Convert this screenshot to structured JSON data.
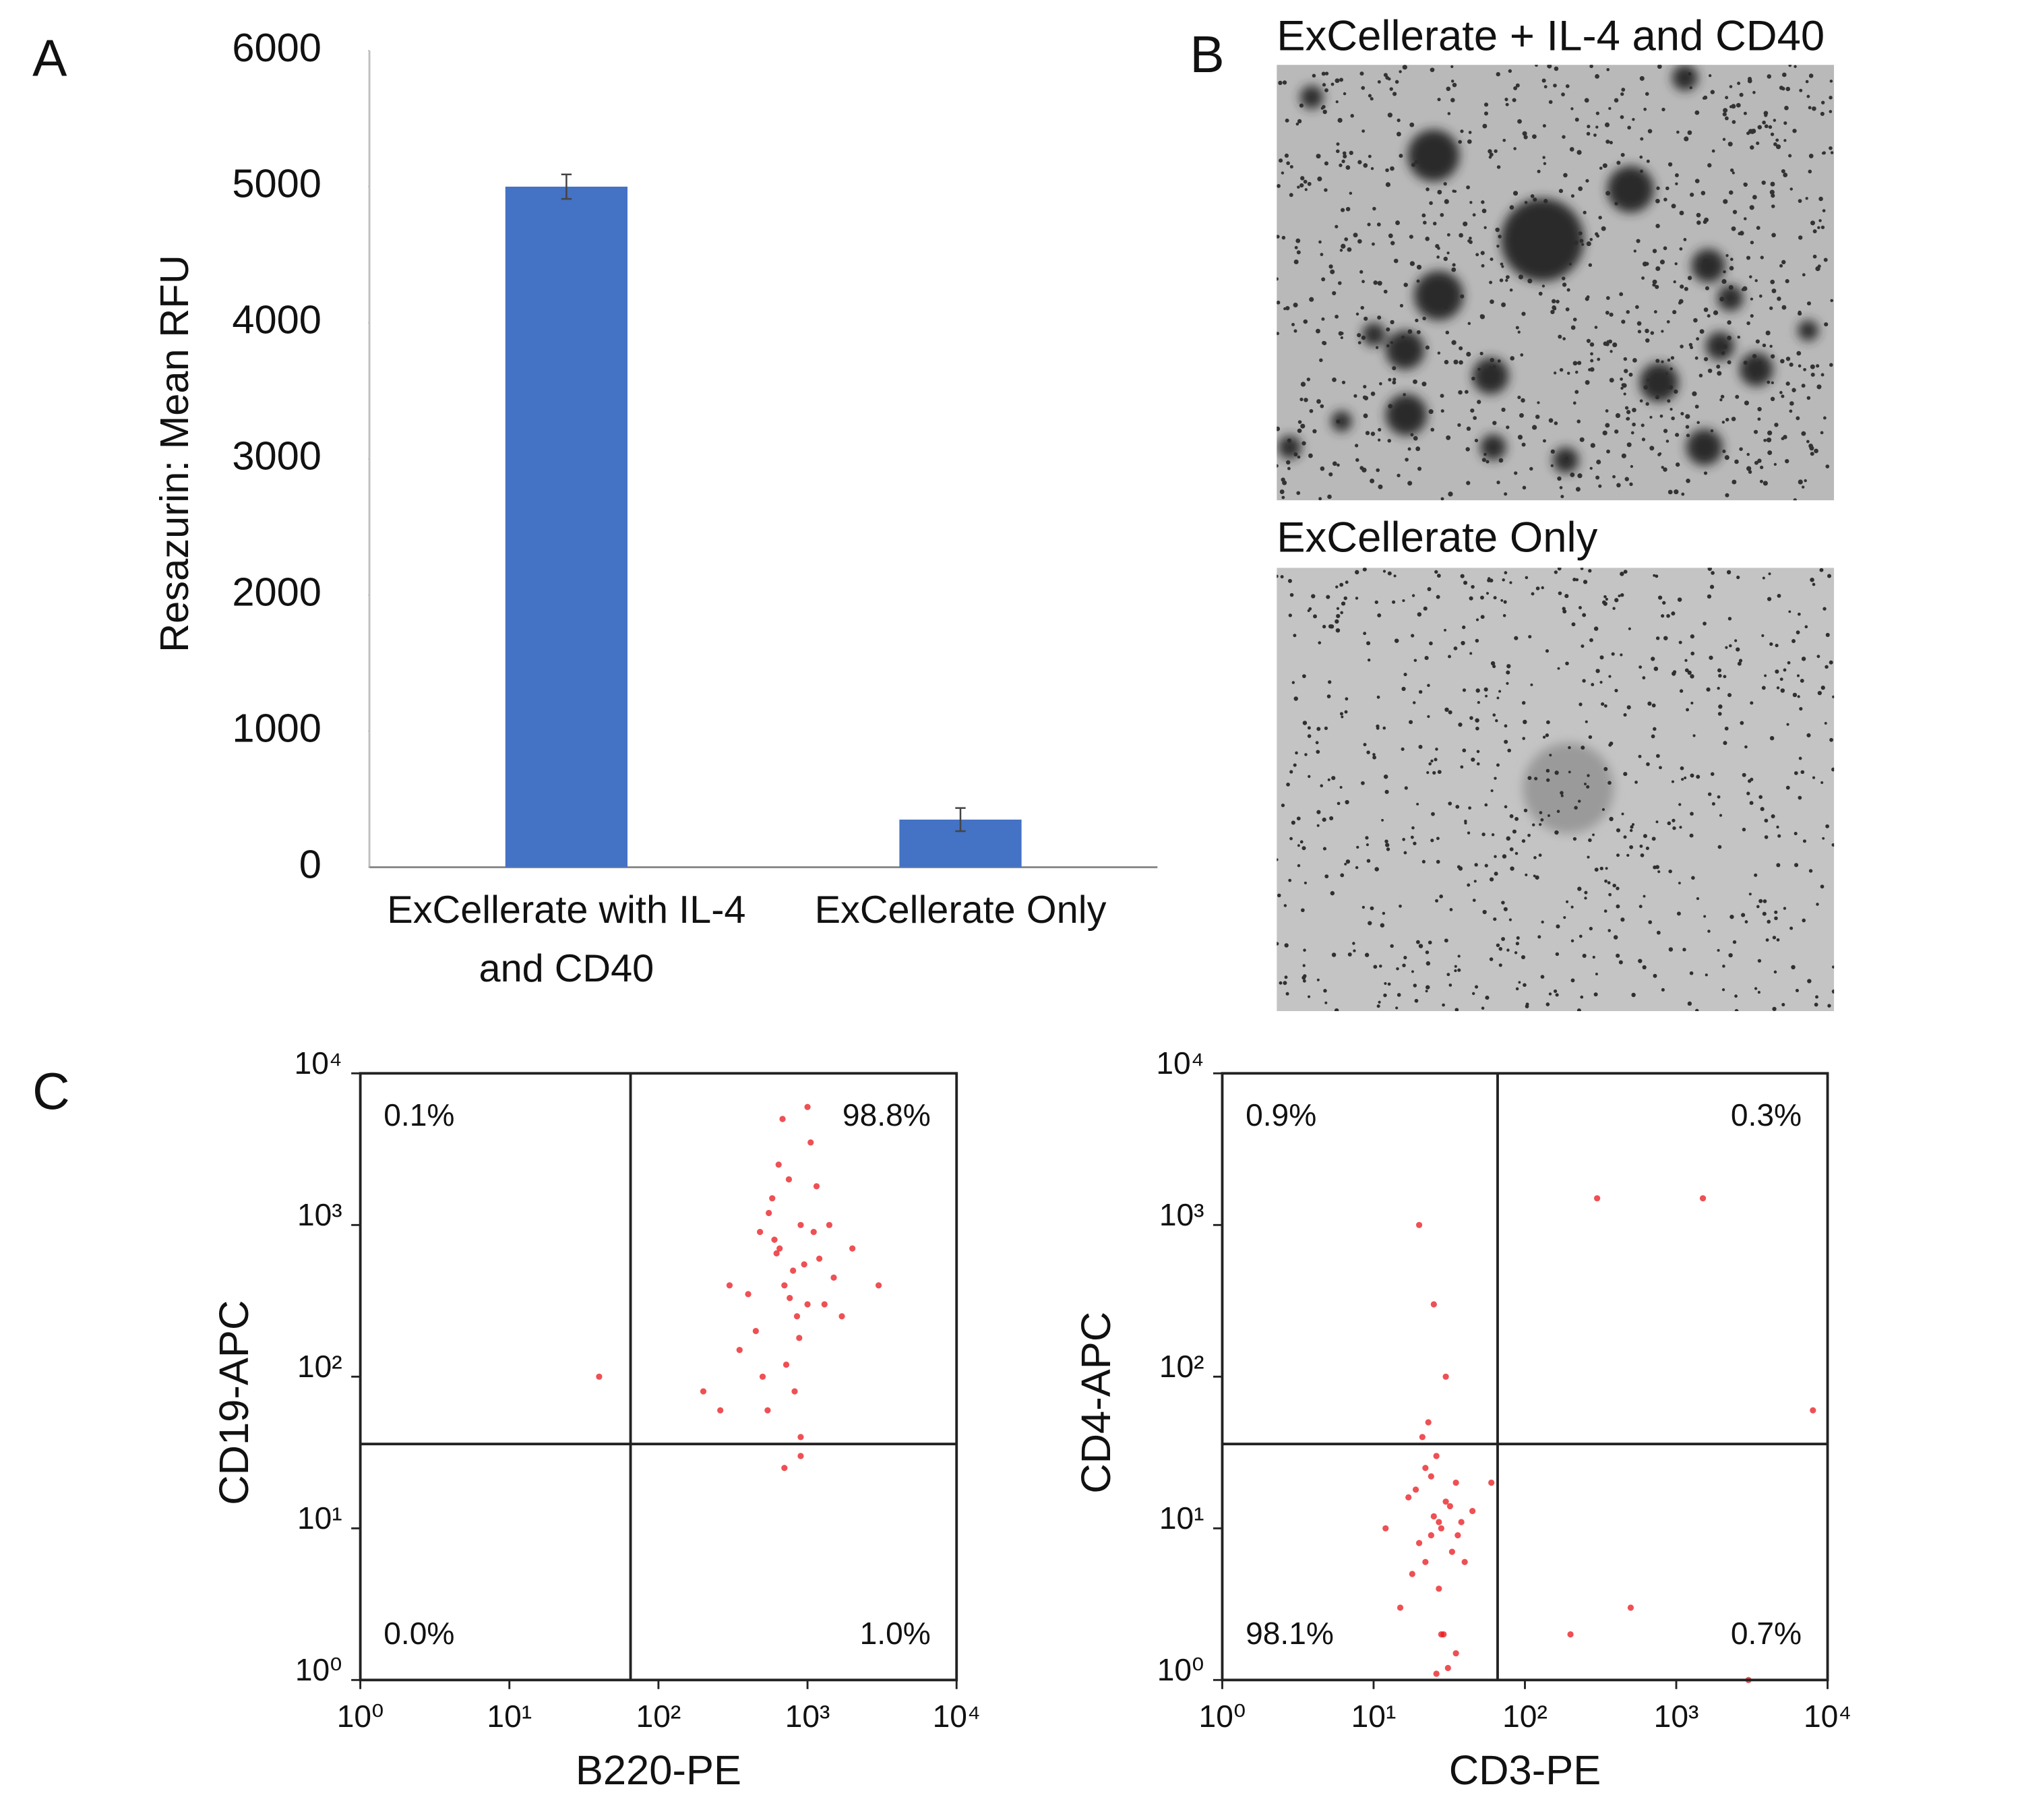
{
  "panel_labels": [
    "A",
    "B",
    "C"
  ],
  "images": [
    {
      "title": "ExCellerate + IL-4 and CD40"
    },
    {
      "title": "ExCellerate Only"
    }
  ],
  "chart_data": [
    {
      "type": "bar",
      "categories": [
        "ExCellerate with IL-4 and CD40",
        "ExCellerate Only"
      ],
      "values": [
        5000,
        350
      ],
      "errors": [
        90,
        85
      ],
      "color": "#4472c4",
      "y_label": "Resazurin: Mean RFU",
      "ylim": [
        0,
        6000
      ],
      "yticks": [
        0,
        1000,
        2000,
        3000,
        4000,
        5000,
        6000
      ],
      "grid": false
    },
    {
      "type": "scatter",
      "x_label": "B220-PE",
      "y_label": "CD19-APC",
      "xscale": "log",
      "yscale": "log",
      "xlim": [
        1,
        10000
      ],
      "ylim": [
        1,
        10000
      ],
      "xticks": [
        {
          "value": 1,
          "label": "10⁰"
        },
        {
          "value": 10,
          "label": "10¹"
        },
        {
          "value": 100,
          "label": "10²"
        },
        {
          "value": 1000,
          "label": "10³"
        },
        {
          "value": 10000,
          "label": "10⁴"
        }
      ],
      "yticks": [
        {
          "value": 1,
          "label": "10⁰"
        },
        {
          "value": 10,
          "label": "10¹"
        },
        {
          "value": 100,
          "label": "10²"
        },
        {
          "value": 1000,
          "label": "10³"
        },
        {
          "value": 10000,
          "label": "10⁴"
        }
      ],
      "gate_x": 65,
      "gate_y": 36,
      "quadrants": [
        {
          "position": "upper-left",
          "value": 0.1,
          "label": "0.1%"
        },
        {
          "position": "upper-right",
          "value": 98.8,
          "label": "98.8%"
        },
        {
          "position": "lower-left",
          "value": 0.0,
          "label": "0.0%"
        },
        {
          "position": "lower-right",
          "value": 1.0,
          "label": "1.0%"
        }
      ],
      "series": [
        {
          "color": "#e8161b",
          "x": [
            800,
            600,
            1000,
            1200,
            450,
            700,
            900,
            1500,
            350,
            550,
            650,
            850,
            1100,
            400,
            750,
            950,
            1300,
            500,
            620,
            880,
            2000,
            300,
            1050,
            720,
            580,
            1400,
            820,
            680,
            260,
            1700,
            900,
            480,
            1000,
            760,
            640,
            540,
            1150,
            3000,
            200,
            40,
            900,
            700
          ],
          "values": [
            500,
            800,
            300,
            600,
            200,
            400,
            1000,
            450,
            150,
            1200,
            700,
            250,
            900,
            350,
            2000,
            550,
            300,
            100,
            650,
            180,
            700,
            400,
            3500,
            120,
            1500,
            1000,
            80,
            5000,
            60,
            250,
            40,
            900,
            6000,
            330,
            2500,
            60,
            1800,
            400,
            80,
            100,
            30,
            25
          ]
        }
      ]
    },
    {
      "type": "scatter",
      "x_label": "CD3-PE",
      "y_label": "CD4-APC",
      "xscale": "log",
      "yscale": "log",
      "xlim": [
        1,
        10000
      ],
      "ylim": [
        1,
        10000
      ],
      "xticks": [
        {
          "value": 1,
          "label": "10⁰"
        },
        {
          "value": 10,
          "label": "10¹"
        },
        {
          "value": 100,
          "label": "10²"
        },
        {
          "value": 1000,
          "label": "10³"
        },
        {
          "value": 10000,
          "label": "10⁴"
        }
      ],
      "yticks": [
        {
          "value": 1,
          "label": "10⁰"
        },
        {
          "value": 10,
          "label": "10¹"
        },
        {
          "value": 100,
          "label": "10²"
        },
        {
          "value": 1000,
          "label": "10³"
        },
        {
          "value": 10000,
          "label": "10⁴"
        }
      ],
      "gate_x": 66,
      "gate_y": 36,
      "quadrants": [
        {
          "position": "upper-left",
          "value": 0.9,
          "label": "0.9%"
        },
        {
          "position": "upper-right",
          "value": 0.3,
          "label": "0.3%"
        },
        {
          "position": "lower-left",
          "value": 98.1,
          "label": "98.1%"
        },
        {
          "position": "lower-right",
          "value": 0.7,
          "label": "0.7%"
        }
      ],
      "series": [
        {
          "color": "#e8161b",
          "x": [
            25,
            20,
            30,
            35,
            18,
            28,
            22,
            40,
            15,
            32,
            26,
            24,
            38,
            19,
            27,
            33,
            21,
            29,
            45,
            17,
            23,
            31,
            36,
            26,
            200,
            300,
            1500,
            8000,
            60,
            25,
            30,
            20,
            28,
            35,
            22,
            3000,
            500,
            24,
            27,
            12
          ],
          "values": [
            12,
            8,
            15,
            20,
            5,
            10,
            25,
            6,
            3,
            14,
            30,
            9,
            11,
            18,
            4,
            7,
            40,
            2,
            13,
            16,
            50,
            1.2,
            9,
            1.1,
            2,
            1500,
            1500,
            60,
            20,
            300,
            100,
            1000,
            2,
            1.5,
            6,
            1,
            3,
            22,
            11,
            10
          ]
        }
      ]
    }
  ]
}
